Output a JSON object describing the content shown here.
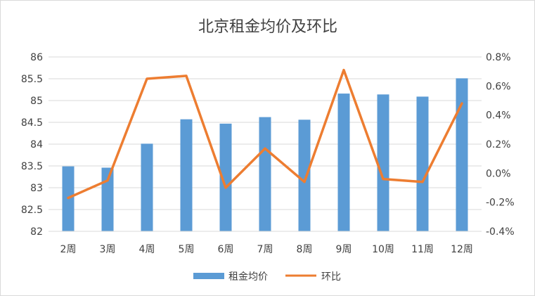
{
  "chart_data": {
    "type": "bar",
    "title": "北京租金均价及环比",
    "categories": [
      "2周",
      "3周",
      "4周",
      "5周",
      "6周",
      "7周",
      "8周",
      "9周",
      "10周",
      "11周",
      "12周"
    ],
    "series": [
      {
        "name": "租金均价",
        "type": "bar",
        "axis": "left",
        "color": "#5b9bd5",
        "values": [
          83.49,
          83.46,
          84.01,
          84.57,
          84.47,
          84.62,
          84.56,
          85.16,
          85.14,
          85.09,
          85.51
        ]
      },
      {
        "name": "环比",
        "type": "line",
        "axis": "right",
        "color": "#ed7d31",
        "values": [
          -0.17,
          -0.05,
          0.65,
          0.67,
          -0.1,
          0.17,
          -0.06,
          0.71,
          -0.04,
          -0.06,
          0.48
        ]
      }
    ],
    "y_left": {
      "min": 82,
      "max": 86,
      "step": 0.5,
      "tick_labels": [
        "82",
        "82.5",
        "83",
        "83.5",
        "84",
        "84.5",
        "85",
        "85.5",
        "86"
      ]
    },
    "y_right": {
      "min": -0.4,
      "max": 0.8,
      "step": 0.2,
      "tick_labels": [
        "-0.4%",
        "-0.2%",
        "0.0%",
        "0.2%",
        "0.4%",
        "0.6%",
        "0.8%"
      ]
    },
    "grid": true,
    "gridline_color": "#d9d9d9",
    "legend_position": "bottom"
  }
}
